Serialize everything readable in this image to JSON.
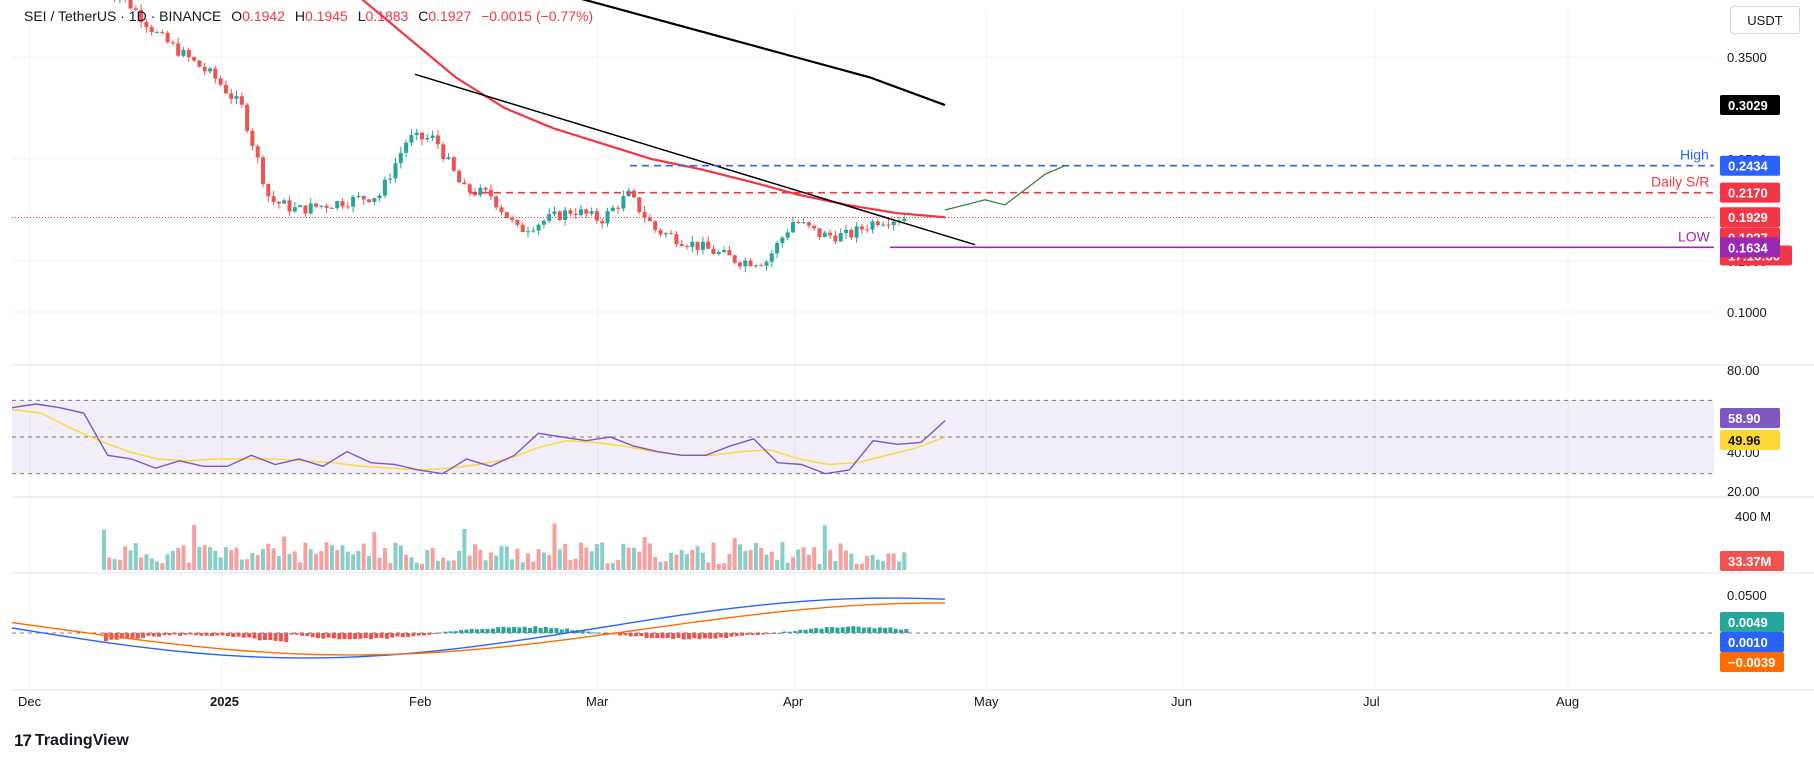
{
  "header": {
    "symbol": "SEI / TetherUS · 1D · BINANCE",
    "o_label": "O",
    "o_value": "0.1942",
    "h_label": "H",
    "h_value": "0.1945",
    "l_label": "L",
    "l_value": "0.1883",
    "c_label": "C",
    "c_value": "0.1927",
    "change": "−0.0015 (−0.77%)"
  },
  "currency_button": "USDT",
  "brand": "TradingView",
  "colors": {
    "up": "#26a69a",
    "down": "#ef5350",
    "ema_red": "#f23645",
    "ema_black": "#000000",
    "high_line": "#2962ff",
    "sr_line": "#f23645",
    "low_line": "#9c27b0",
    "rsi": "#7e57c2",
    "rsi_ma": "#fdd835",
    "macd": "#2962ff",
    "signal": "#ff6d00"
  },
  "chart_data": {
    "type": "candlestick",
    "price_ticks": [
      "0.3500",
      "0.2500",
      "0.1500",
      "0.1000"
    ],
    "price_labels": [
      {
        "text": "0.3029",
        "color": "#000000"
      },
      {
        "text": "0.2434",
        "color": "#2962ff"
      },
      {
        "text": "0.2170",
        "color": "#f23645"
      },
      {
        "text": "0.1929",
        "color": "#f23645"
      },
      {
        "text": "0.1927",
        "color": "#f23645"
      },
      {
        "text": "17:16:30",
        "color": "#f23645"
      },
      {
        "text": "0.1634",
        "color": "#9c27b0"
      }
    ],
    "annotations": [
      {
        "text": "High",
        "color": "#2962ff",
        "level": 0.2434
      },
      {
        "text": "Daily S/R",
        "color": "#f23645",
        "level": 0.217
      },
      {
        "text": "LOW",
        "color": "#9c27b0",
        "level": 0.1634
      }
    ],
    "x_labels": [
      "Dec",
      "2025",
      "Feb",
      "Mar",
      "Apr",
      "May",
      "Jun",
      "Jul",
      "Aug"
    ],
    "price_path": [
      0.42,
      0.4,
      0.37,
      0.35,
      0.33,
      0.3,
      0.21,
      0.2,
      0.205,
      0.21,
      0.215,
      0.27,
      0.27,
      0.22,
      0.215,
      0.18,
      0.19,
      0.2,
      0.19,
      0.215,
      0.18,
      0.17,
      0.16,
      0.15,
      0.15,
      0.19,
      0.175,
      0.175,
      0.19,
      0.1927
    ],
    "ema50_path": [
      0.48,
      0.44,
      0.41,
      0.37,
      0.33,
      0.3,
      0.28,
      0.265,
      0.25,
      0.24,
      0.228,
      0.215,
      0.205,
      0.197,
      0.1929
    ],
    "ema200_path": [
      0.44,
      0.43,
      0.41,
      0.39,
      0.37,
      0.35,
      0.33,
      0.3029
    ],
    "projection_path": [
      0.2,
      0.205,
      0.21,
      0.205,
      0.22,
      0.235,
      0.2434
    ],
    "rsi": {
      "ticks": [
        "80.00",
        "40.00",
        "20.00"
      ],
      "value": "58.90",
      "ma_value": "49.96",
      "path": [
        66,
        68,
        66,
        63,
        40,
        38,
        33,
        37,
        34,
        34,
        40,
        35,
        38,
        34,
        42,
        36,
        35,
        32,
        30,
        38,
        34,
        40,
        52,
        50,
        48,
        50,
        45,
        42,
        40,
        40,
        45,
        49,
        36,
        35,
        30,
        32,
        48,
        46,
        47,
        58.9
      ],
      "ma_path": [
        65,
        63,
        55,
        48,
        42,
        38,
        37,
        38,
        38,
        38,
        37,
        36,
        34,
        33,
        32,
        33,
        35,
        38,
        44,
        48,
        47,
        45,
        42,
        40,
        40,
        42,
        43,
        38,
        35,
        36,
        40,
        44,
        49.96
      ]
    },
    "volume": {
      "tick": "400 M",
      "value": "33.37M"
    },
    "macd": {
      "tick": "0.0500",
      "histogram": "0.0049",
      "macd": "0.0010",
      "signal": "−0.0039"
    }
  }
}
